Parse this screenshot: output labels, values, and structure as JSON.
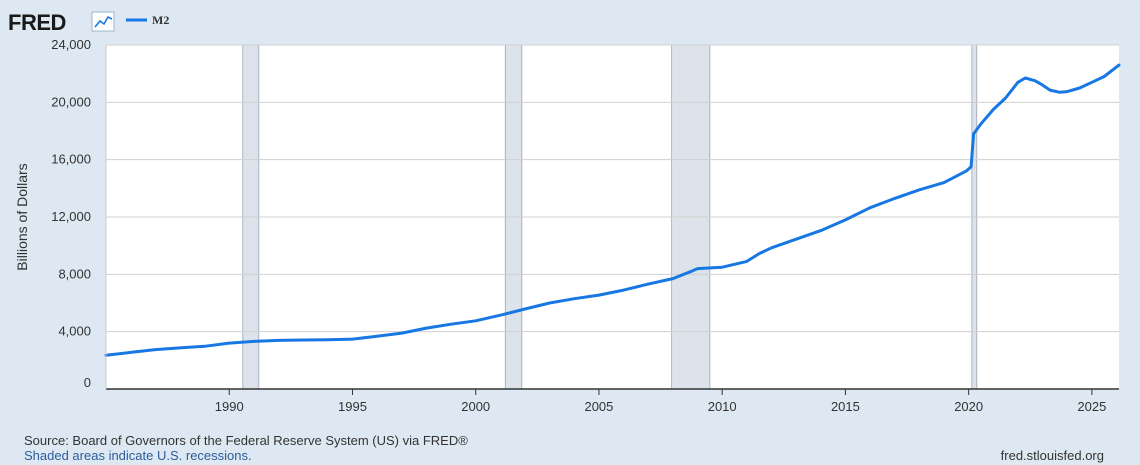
{
  "logo": {
    "text": "FRED"
  },
  "colors": {
    "line": "#1777e3",
    "recession": "#dde3ea",
    "plot_bg": "#ffffff",
    "page_bg": "#dde8f3",
    "grid": "#d0d0d0",
    "link": "#2c5d9a"
  },
  "footer": {
    "source": "Source: Board of Governors of the Federal Reserve System (US) via FRED®",
    "recession_note": "Shaded areas indicate U.S. recessions.",
    "site": "fred.stlouisfed.org"
  },
  "icons": {
    "graph_icon": "line-chart-icon"
  },
  "chart_data": {
    "type": "line",
    "title": "",
    "xlabel": "",
    "ylabel": "Billions of Dollars",
    "grid": true,
    "legend": "top-left",
    "xlim": [
      1985.0,
      2026.1
    ],
    "ylim": [
      0,
      24000
    ],
    "x_ticks": [
      1990,
      1995,
      2000,
      2005,
      2010,
      2015,
      2020,
      2025
    ],
    "y_ticks": [
      0,
      4000,
      8000,
      12000,
      16000,
      20000,
      24000
    ],
    "y_tick_labels": [
      "0",
      "4,000",
      "8,000",
      "12,000",
      "16,000",
      "20,000",
      "24,000"
    ],
    "recessions": [
      [
        1990.55,
        1991.2
      ],
      [
        2001.2,
        2001.87
      ],
      [
        2007.95,
        2009.5
      ],
      [
        2020.13,
        2020.33
      ]
    ],
    "series": [
      {
        "name": "M2",
        "x": [
          1985.0,
          1986.0,
          1987.0,
          1988.0,
          1989.0,
          1990.0,
          1991.0,
          1992.0,
          1993.0,
          1994.0,
          1995.0,
          1996.0,
          1997.0,
          1998.0,
          1999.0,
          2000.0,
          2001.0,
          2002.0,
          2003.0,
          2004.0,
          2005.0,
          2006.0,
          2007.0,
          2008.0,
          2008.8,
          2009.0,
          2010.0,
          2011.0,
          2011.5,
          2012.0,
          2013.0,
          2014.0,
          2015.0,
          2016.0,
          2017.0,
          2018.0,
          2019.0,
          2019.9,
          2020.1,
          2020.2,
          2020.5,
          2021.0,
          2021.5,
          2022.0,
          2022.3,
          2022.7,
          2023.0,
          2023.3,
          2023.7,
          2024.0,
          2024.5,
          2025.0,
          2025.5,
          2026.1
        ],
        "y": [
          2350,
          2550,
          2750,
          2870,
          2980,
          3200,
          3320,
          3390,
          3420,
          3440,
          3480,
          3680,
          3900,
          4250,
          4520,
          4760,
          5150,
          5580,
          6000,
          6300,
          6550,
          6900,
          7320,
          7700,
          8250,
          8400,
          8500,
          8900,
          9450,
          9850,
          10450,
          11050,
          11800,
          12650,
          13300,
          13900,
          14400,
          15200,
          15500,
          17800,
          18500,
          19500,
          20300,
          21400,
          21700,
          21500,
          21200,
          20850,
          20700,
          20750,
          21000,
          21400,
          21800,
          22600
        ]
      }
    ]
  }
}
